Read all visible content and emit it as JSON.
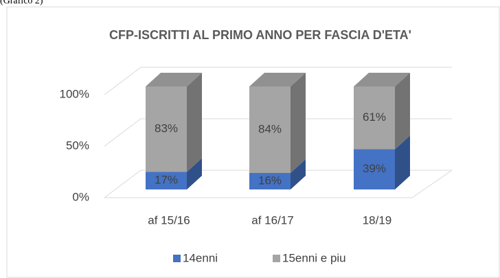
{
  "note_label": "(Grafico 2)",
  "chart_data": {
    "type": "bar3d_stacked",
    "title": "CFP-ISCRITTI AL PRIMO ANNO PER FASCIA D'ETA'",
    "categories": [
      "af 15/16",
      "af 16/17",
      "18/19"
    ],
    "series": [
      {
        "name": "14enni",
        "color": "#4472c4",
        "values": [
          17,
          16,
          39
        ],
        "value_labels": [
          "17%",
          "16%",
          "39%"
        ]
      },
      {
        "name": "15enni e piu",
        "color": "#a5a5a5",
        "values": [
          83,
          84,
          61
        ],
        "value_labels": [
          "83%",
          "84%",
          "61%"
        ]
      }
    ],
    "ylim": [
      0,
      100
    ],
    "yticks": [
      {
        "value": 0,
        "label": "0%"
      },
      {
        "value": 50,
        "label": "50%"
      },
      {
        "value": 100,
        "label": "100%"
      }
    ],
    "grid": true,
    "legend": "bottom"
  }
}
